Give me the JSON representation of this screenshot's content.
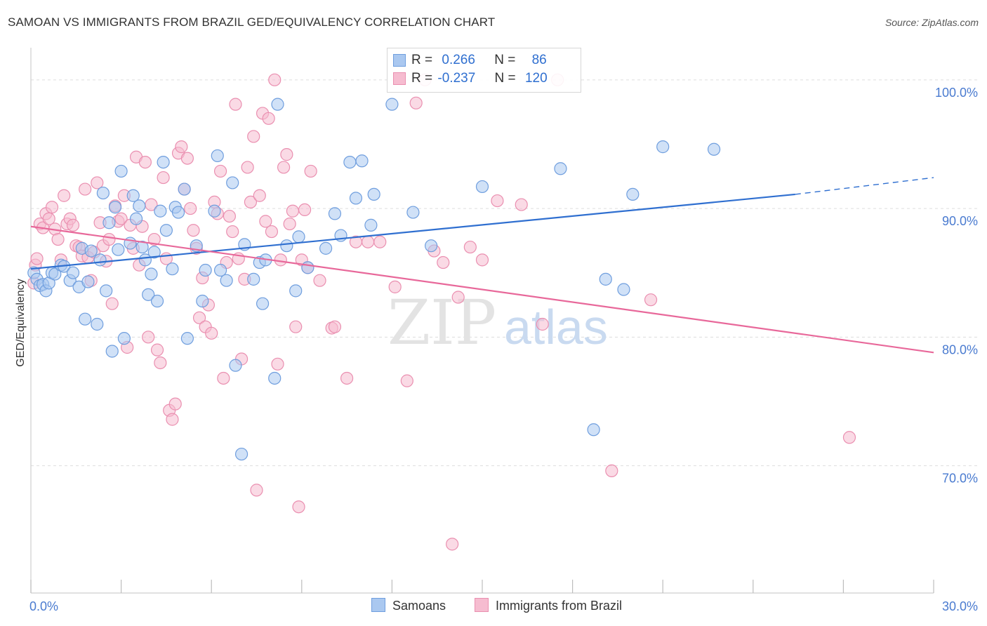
{
  "title": "SAMOAN VS IMMIGRANTS FROM BRAZIL GED/EQUIVALENCY CORRELATION CHART",
  "source": "Source: ZipAtlas.com",
  "watermark": {
    "zip": "ZIP",
    "atlas": "atlas"
  },
  "legend_top": {
    "rows": [
      {
        "r_label": "R =",
        "r_value": "0.266",
        "n_label": "N =",
        "n_value": "86"
      },
      {
        "r_label": "R =",
        "r_value": "-0.237",
        "n_label": "N =",
        "n_value": "120"
      }
    ]
  },
  "legend_bottom": [
    "Samoans",
    "Immigrants from Brazil"
  ],
  "colors": {
    "samoans_fill": "#aac8f0",
    "samoans_stroke": "#6f9ede",
    "samoans_line": "#2f6fd0",
    "brazil_fill": "#f6bcd0",
    "brazil_stroke": "#ea8fb0",
    "brazil_line": "#e8689a",
    "tick_label": "#4a7bd0",
    "grid": "#dddddd"
  },
  "chart_data": {
    "type": "scatter",
    "title": "SAMOAN VS IMMIGRANTS FROM BRAZIL GED/EQUIVALENCY CORRELATION CHART",
    "xlabel": "",
    "ylabel": "GED/Equivalency",
    "xlim": [
      0,
      30
    ],
    "ylim": [
      60.1,
      102.5
    ],
    "x_tick_labels": [
      "0.0%",
      "30.0%"
    ],
    "y_ticks": [
      70,
      80,
      90,
      100
    ],
    "y_tick_labels": [
      "70.0%",
      "80.0%",
      "90.0%",
      "100.0%"
    ],
    "grid": "horizontal dashed",
    "legend_position": "top-center and bottom",
    "series": [
      {
        "name": "Samoans",
        "r": 0.266,
        "n": 86,
        "trend": {
          "x": [
            0,
            25.4
          ],
          "y": [
            85.3,
            91.1
          ],
          "dashed_to": [
            30,
            92.4
          ]
        },
        "points": [
          [
            0.1,
            85.0
          ],
          [
            0.2,
            84.5
          ],
          [
            0.3,
            84.0
          ],
          [
            0.4,
            84.1
          ],
          [
            0.5,
            83.6
          ],
          [
            0.6,
            84.2
          ],
          [
            0.7,
            85.0
          ],
          [
            0.8,
            84.9
          ],
          [
            1.0,
            85.6
          ],
          [
            1.1,
            85.5
          ],
          [
            1.3,
            84.4
          ],
          [
            1.4,
            85.0
          ],
          [
            1.6,
            83.9
          ],
          [
            1.7,
            86.9
          ],
          [
            1.8,
            81.4
          ],
          [
            1.9,
            84.3
          ],
          [
            2.0,
            86.7
          ],
          [
            2.2,
            81.0
          ],
          [
            2.3,
            86.0
          ],
          [
            2.4,
            91.2
          ],
          [
            2.5,
            83.6
          ],
          [
            2.6,
            88.9
          ],
          [
            2.7,
            78.9
          ],
          [
            2.8,
            90.1
          ],
          [
            2.9,
            86.8
          ],
          [
            3.0,
            92.9
          ],
          [
            3.1,
            79.9
          ],
          [
            3.3,
            87.3
          ],
          [
            3.4,
            91.0
          ],
          [
            3.5,
            89.2
          ],
          [
            3.6,
            90.2
          ],
          [
            3.7,
            87.0
          ],
          [
            3.8,
            86.0
          ],
          [
            3.9,
            83.3
          ],
          [
            4.0,
            84.9
          ],
          [
            4.1,
            86.6
          ],
          [
            4.2,
            82.8
          ],
          [
            4.3,
            89.8
          ],
          [
            4.4,
            93.6
          ],
          [
            4.5,
            88.3
          ],
          [
            4.7,
            85.3
          ],
          [
            4.8,
            90.1
          ],
          [
            4.9,
            89.7
          ],
          [
            5.1,
            91.5
          ],
          [
            5.2,
            79.9
          ],
          [
            5.5,
            87.1
          ],
          [
            5.7,
            82.8
          ],
          [
            5.8,
            85.2
          ],
          [
            6.1,
            89.8
          ],
          [
            6.2,
            94.1
          ],
          [
            6.3,
            85.2
          ],
          [
            6.5,
            84.4
          ],
          [
            6.7,
            92.0
          ],
          [
            6.8,
            77.8
          ],
          [
            7.0,
            70.9
          ],
          [
            7.1,
            87.2
          ],
          [
            7.4,
            84.5
          ],
          [
            7.6,
            85.8
          ],
          [
            7.7,
            82.6
          ],
          [
            7.8,
            86.0
          ],
          [
            8.1,
            76.8
          ],
          [
            8.2,
            98.1
          ],
          [
            8.5,
            87.1
          ],
          [
            8.8,
            83.6
          ],
          [
            8.9,
            87.8
          ],
          [
            9.2,
            85.4
          ],
          [
            9.8,
            86.9
          ],
          [
            10.1,
            89.6
          ],
          [
            10.3,
            87.9
          ],
          [
            10.6,
            93.6
          ],
          [
            10.8,
            90.8
          ],
          [
            11.0,
            93.7
          ],
          [
            11.3,
            88.7
          ],
          [
            11.4,
            91.1
          ],
          [
            12.0,
            98.1
          ],
          [
            12.7,
            89.7
          ],
          [
            13.3,
            87.1
          ],
          [
            15.0,
            91.7
          ],
          [
            17.6,
            93.1
          ],
          [
            18.7,
            72.8
          ],
          [
            19.1,
            84.5
          ],
          [
            19.7,
            83.7
          ],
          [
            20.0,
            91.1
          ],
          [
            21.0,
            94.8
          ],
          [
            22.7,
            94.6
          ]
        ]
      },
      {
        "name": "Immigrants from Brazil",
        "r": -0.237,
        "n": 120,
        "trend": {
          "x": [
            0,
            30
          ],
          "y": [
            88.6,
            78.8
          ]
        },
        "points": [
          [
            0.1,
            84.2
          ],
          [
            0.15,
            85.6
          ],
          [
            0.2,
            86.1
          ],
          [
            0.3,
            88.8
          ],
          [
            0.4,
            88.5
          ],
          [
            0.5,
            89.6
          ],
          [
            0.6,
            89.2
          ],
          [
            0.7,
            90.1
          ],
          [
            0.8,
            88.4
          ],
          [
            0.9,
            87.6
          ],
          [
            1.0,
            86.0
          ],
          [
            1.1,
            91.0
          ],
          [
            1.2,
            88.8
          ],
          [
            1.3,
            89.2
          ],
          [
            1.4,
            88.7
          ],
          [
            1.5,
            87.1
          ],
          [
            1.6,
            87.0
          ],
          [
            1.7,
            86.3
          ],
          [
            1.8,
            91.5
          ],
          [
            1.9,
            86.2
          ],
          [
            2.0,
            84.4
          ],
          [
            2.1,
            86.6
          ],
          [
            2.2,
            92.0
          ],
          [
            2.3,
            88.9
          ],
          [
            2.4,
            87.1
          ],
          [
            2.5,
            85.9
          ],
          [
            2.6,
            87.6
          ],
          [
            2.7,
            82.6
          ],
          [
            2.8,
            90.2
          ],
          [
            2.9,
            89.0
          ],
          [
            3.0,
            89.2
          ],
          [
            3.1,
            91.0
          ],
          [
            3.2,
            79.2
          ],
          [
            3.3,
            88.7
          ],
          [
            3.4,
            86.9
          ],
          [
            3.5,
            94.0
          ],
          [
            3.6,
            85.6
          ],
          [
            3.7,
            88.6
          ],
          [
            3.8,
            93.6
          ],
          [
            3.9,
            80.0
          ],
          [
            4.0,
            90.3
          ],
          [
            4.1,
            87.6
          ],
          [
            4.2,
            79.0
          ],
          [
            4.3,
            78.0
          ],
          [
            4.4,
            92.4
          ],
          [
            4.5,
            86.1
          ],
          [
            4.6,
            74.3
          ],
          [
            4.7,
            73.6
          ],
          [
            4.8,
            74.8
          ],
          [
            4.9,
            94.3
          ],
          [
            5.0,
            94.8
          ],
          [
            5.1,
            91.5
          ],
          [
            5.2,
            93.9
          ],
          [
            5.3,
            90.0
          ],
          [
            5.4,
            88.3
          ],
          [
            5.5,
            86.9
          ],
          [
            5.6,
            81.5
          ],
          [
            5.7,
            84.6
          ],
          [
            5.8,
            80.8
          ],
          [
            5.9,
            82.5
          ],
          [
            6.0,
            80.3
          ],
          [
            6.1,
            90.5
          ],
          [
            6.2,
            89.6
          ],
          [
            6.3,
            92.9
          ],
          [
            6.4,
            76.8
          ],
          [
            6.5,
            85.8
          ],
          [
            6.6,
            89.4
          ],
          [
            6.7,
            88.2
          ],
          [
            6.8,
            98.1
          ],
          [
            6.9,
            86.1
          ],
          [
            7.0,
            78.3
          ],
          [
            7.1,
            84.5
          ],
          [
            7.2,
            93.2
          ],
          [
            7.3,
            90.5
          ],
          [
            7.4,
            95.6
          ],
          [
            7.5,
            68.1
          ],
          [
            7.6,
            91.0
          ],
          [
            7.7,
            97.4
          ],
          [
            7.8,
            89.0
          ],
          [
            7.9,
            97.0
          ],
          [
            8.0,
            88.2
          ],
          [
            8.1,
            100.0
          ],
          [
            8.2,
            77.9
          ],
          [
            8.3,
            86.0
          ],
          [
            8.4,
            93.2
          ],
          [
            8.5,
            94.2
          ],
          [
            8.6,
            88.8
          ],
          [
            8.7,
            89.8
          ],
          [
            8.8,
            80.8
          ],
          [
            8.9,
            66.8
          ],
          [
            9.0,
            86.0
          ],
          [
            9.1,
            89.9
          ],
          [
            9.2,
            85.4
          ],
          [
            9.3,
            92.9
          ],
          [
            9.6,
            84.4
          ],
          [
            10.0,
            80.7
          ],
          [
            10.1,
            80.8
          ],
          [
            10.5,
            76.8
          ],
          [
            10.8,
            87.4
          ],
          [
            11.2,
            87.4
          ],
          [
            11.6,
            87.4
          ],
          [
            12.1,
            83.9
          ],
          [
            12.5,
            76.6
          ],
          [
            12.8,
            98.2
          ],
          [
            13.1,
            100.0
          ],
          [
            13.4,
            86.7
          ],
          [
            13.7,
            85.8
          ],
          [
            14.0,
            63.9
          ],
          [
            14.2,
            83.1
          ],
          [
            14.6,
            87.0
          ],
          [
            15.0,
            86.0
          ],
          [
            15.5,
            90.6
          ],
          [
            16.3,
            90.3
          ],
          [
            17.0,
            81.0
          ],
          [
            17.5,
            100.0
          ],
          [
            19.3,
            69.6
          ],
          [
            20.6,
            82.9
          ],
          [
            27.2,
            72.2
          ]
        ]
      }
    ]
  }
}
